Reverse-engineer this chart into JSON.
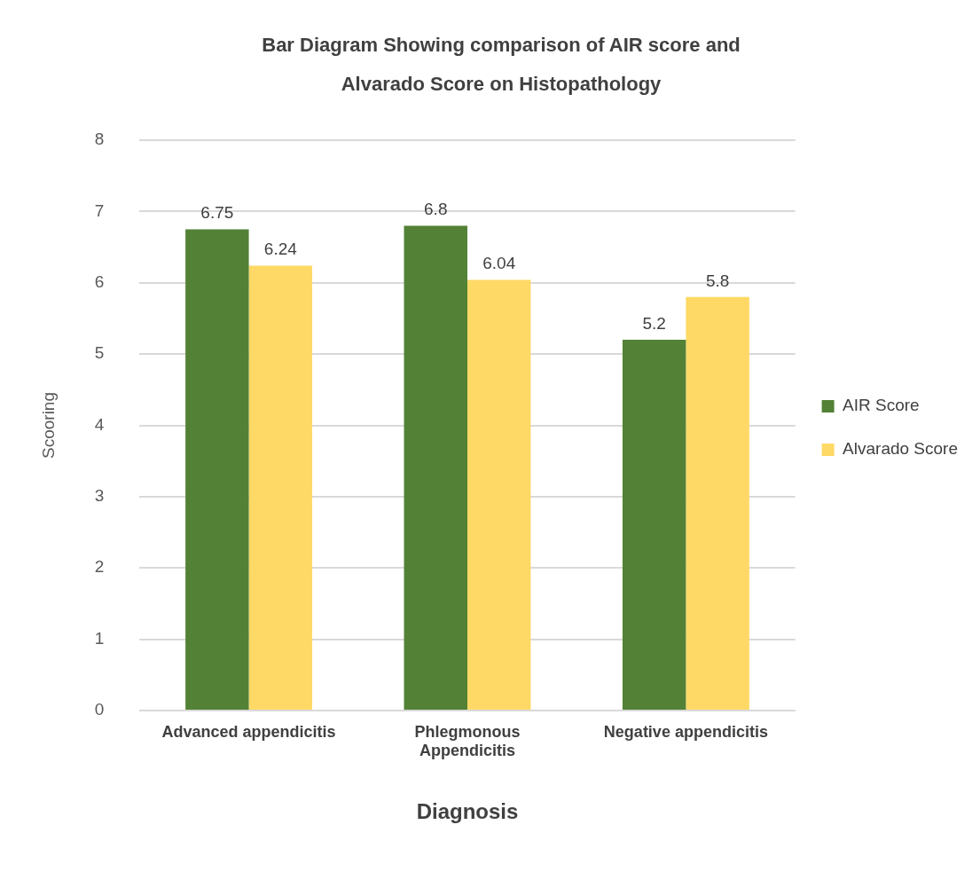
{
  "chart_data": {
    "type": "bar",
    "title": "Bar Diagram Showing comparison of AIR score and Alvarado Score on Histopathology",
    "xlabel": "Diagnosis",
    "ylabel": "Scooring",
    "categories": [
      "Advanced appendicitis",
      "Phlegmonous Appendicitis",
      "Negative appendicitis"
    ],
    "series": [
      {
        "name": "AIR Score",
        "color": "#538135",
        "values": [
          6.75,
          6.8,
          5.2
        ]
      },
      {
        "name": "Alvarado Score",
        "color": "#ffd966",
        "values": [
          6.24,
          6.04,
          5.8
        ]
      }
    ],
    "ylim": [
      0,
      8
    ],
    "yticks": [
      0,
      1,
      2,
      3,
      4,
      5,
      6,
      7,
      8
    ],
    "grid": "y",
    "legend": "right",
    "data_labels": true
  }
}
